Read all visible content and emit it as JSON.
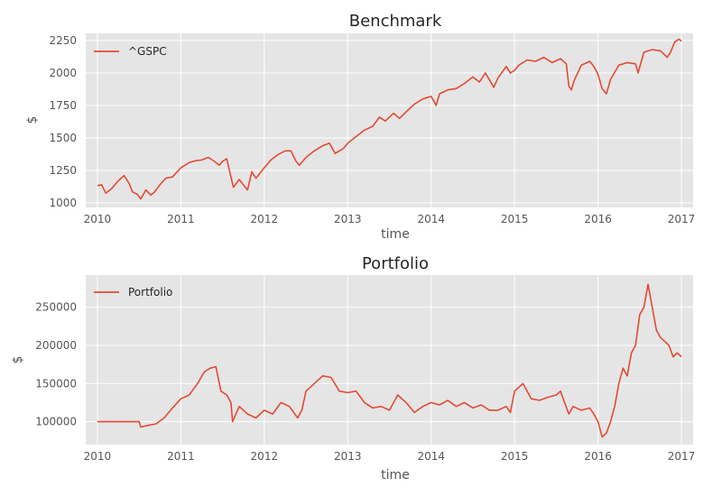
{
  "chart_data": [
    {
      "type": "line",
      "title": "Benchmark",
      "xlabel": "time",
      "ylabel": "$",
      "xlim": [
        2009.86,
        2017.14
      ],
      "ylim": [
        965,
        2305
      ],
      "x_ticks": [
        2010,
        2011,
        2012,
        2013,
        2014,
        2015,
        2016,
        2017
      ],
      "x_tick_labels": [
        "2010",
        "2011",
        "2012",
        "2013",
        "2014",
        "2015",
        "2016",
        "2017"
      ],
      "y_ticks": [
        1000,
        1250,
        1500,
        1750,
        2000,
        2250
      ],
      "y_tick_labels": [
        "1000",
        "1250",
        "1500",
        "1750",
        "2000",
        "2250"
      ],
      "grid": true,
      "legend": "top-left",
      "series": [
        {
          "name": "^GSPC",
          "color": "#e24a33",
          "points": [
            [
              2010.0,
              1132
            ],
            [
              2010.05,
              1140
            ],
            [
              2010.1,
              1075
            ],
            [
              2010.17,
              1110
            ],
            [
              2010.25,
              1170
            ],
            [
              2010.32,
              1210
            ],
            [
              2010.38,
              1150
            ],
            [
              2010.42,
              1085
            ],
            [
              2010.48,
              1065
            ],
            [
              2010.52,
              1030
            ],
            [
              2010.58,
              1100
            ],
            [
              2010.64,
              1060
            ],
            [
              2010.68,
              1080
            ],
            [
              2010.75,
              1140
            ],
            [
              2010.82,
              1190
            ],
            [
              2010.9,
              1200
            ],
            [
              2011.0,
              1270
            ],
            [
              2011.1,
              1310
            ],
            [
              2011.18,
              1325
            ],
            [
              2011.25,
              1330
            ],
            [
              2011.33,
              1350
            ],
            [
              2011.4,
              1320
            ],
            [
              2011.46,
              1290
            ],
            [
              2011.5,
              1320
            ],
            [
              2011.55,
              1340
            ],
            [
              2011.6,
              1200
            ],
            [
              2011.63,
              1120
            ],
            [
              2011.7,
              1180
            ],
            [
              2011.76,
              1130
            ],
            [
              2011.8,
              1100
            ],
            [
              2011.85,
              1240
            ],
            [
              2011.9,
              1190
            ],
            [
              2011.95,
              1230
            ],
            [
              2012.0,
              1270
            ],
            [
              2012.08,
              1330
            ],
            [
              2012.16,
              1370
            ],
            [
              2012.25,
              1400
            ],
            [
              2012.32,
              1400
            ],
            [
              2012.38,
              1320
            ],
            [
              2012.42,
              1290
            ],
            [
              2012.5,
              1350
            ],
            [
              2012.6,
              1400
            ],
            [
              2012.7,
              1440
            ],
            [
              2012.78,
              1460
            ],
            [
              2012.85,
              1380
            ],
            [
              2012.9,
              1400
            ],
            [
              2012.95,
              1420
            ],
            [
              2013.0,
              1460
            ],
            [
              2013.1,
              1510
            ],
            [
              2013.2,
              1560
            ],
            [
              2013.3,
              1590
            ],
            [
              2013.38,
              1660
            ],
            [
              2013.45,
              1630
            ],
            [
              2013.55,
              1690
            ],
            [
              2013.62,
              1650
            ],
            [
              2013.7,
              1700
            ],
            [
              2013.8,
              1760
            ],
            [
              2013.9,
              1800
            ],
            [
              2014.0,
              1820
            ],
            [
              2014.06,
              1750
            ],
            [
              2014.1,
              1840
            ],
            [
              2014.2,
              1870
            ],
            [
              2014.3,
              1880
            ],
            [
              2014.4,
              1920
            ],
            [
              2014.5,
              1970
            ],
            [
              2014.58,
              1930
            ],
            [
              2014.65,
              2000
            ],
            [
              2014.75,
              1890
            ],
            [
              2014.8,
              1960
            ],
            [
              2014.9,
              2050
            ],
            [
              2014.95,
              2000
            ],
            [
              2015.0,
              2020
            ],
            [
              2015.05,
              2060
            ],
            [
              2015.15,
              2100
            ],
            [
              2015.25,
              2090
            ],
            [
              2015.35,
              2120
            ],
            [
              2015.45,
              2080
            ],
            [
              2015.55,
              2110
            ],
            [
              2015.62,
              2070
            ],
            [
              2015.65,
              1900
            ],
            [
              2015.68,
              1870
            ],
            [
              2015.72,
              1950
            ],
            [
              2015.8,
              2060
            ],
            [
              2015.9,
              2090
            ],
            [
              2015.95,
              2050
            ],
            [
              2016.0,
              1990
            ],
            [
              2016.05,
              1880
            ],
            [
              2016.1,
              1840
            ],
            [
              2016.15,
              1950
            ],
            [
              2016.25,
              2060
            ],
            [
              2016.35,
              2080
            ],
            [
              2016.45,
              2070
            ],
            [
              2016.48,
              2000
            ],
            [
              2016.55,
              2160
            ],
            [
              2016.65,
              2180
            ],
            [
              2016.75,
              2170
            ],
            [
              2016.83,
              2120
            ],
            [
              2016.87,
              2160
            ],
            [
              2016.92,
              2240
            ],
            [
              2016.97,
              2260
            ],
            [
              2017.0,
              2245
            ]
          ]
        }
      ]
    },
    {
      "type": "line",
      "title": "Portfolio",
      "xlabel": "time",
      "ylabel": "$",
      "xlim": [
        2009.86,
        2017.14
      ],
      "ylim": [
        70000,
        292000
      ],
      "x_ticks": [
        2010,
        2011,
        2012,
        2013,
        2014,
        2015,
        2016,
        2017
      ],
      "x_tick_labels": [
        "2010",
        "2011",
        "2012",
        "2013",
        "2014",
        "2015",
        "2016",
        "2017"
      ],
      "y_ticks": [
        100000,
        150000,
        200000,
        250000
      ],
      "y_tick_labels": [
        "100000",
        "150000",
        "200000",
        "250000"
      ],
      "grid": true,
      "legend": "top-left",
      "series": [
        {
          "name": "Portfolio",
          "color": "#e24a33",
          "points": [
            [
              2010.0,
              100000
            ],
            [
              2010.5,
              100000
            ],
            [
              2010.52,
              93000
            ],
            [
              2010.6,
              95000
            ],
            [
              2010.7,
              97000
            ],
            [
              2010.8,
              105000
            ],
            [
              2010.9,
              118000
            ],
            [
              2011.0,
              130000
            ],
            [
              2011.1,
              135000
            ],
            [
              2011.2,
              150000
            ],
            [
              2011.28,
              165000
            ],
            [
              2011.35,
              170000
            ],
            [
              2011.42,
              172000
            ],
            [
              2011.48,
              140000
            ],
            [
              2011.55,
              135000
            ],
            [
              2011.6,
              125000
            ],
            [
              2011.62,
              100000
            ],
            [
              2011.7,
              120000
            ],
            [
              2011.8,
              110000
            ],
            [
              2011.9,
              105000
            ],
            [
              2012.0,
              115000
            ],
            [
              2012.1,
              110000
            ],
            [
              2012.2,
              125000
            ],
            [
              2012.3,
              120000
            ],
            [
              2012.4,
              105000
            ],
            [
              2012.45,
              115000
            ],
            [
              2012.5,
              140000
            ],
            [
              2012.6,
              150000
            ],
            [
              2012.7,
              160000
            ],
            [
              2012.8,
              158000
            ],
            [
              2012.9,
              140000
            ],
            [
              2013.0,
              138000
            ],
            [
              2013.1,
              140000
            ],
            [
              2013.2,
              125000
            ],
            [
              2013.3,
              118000
            ],
            [
              2013.4,
              120000
            ],
            [
              2013.5,
              115000
            ],
            [
              2013.6,
              135000
            ],
            [
              2013.7,
              125000
            ],
            [
              2013.8,
              112000
            ],
            [
              2013.9,
              120000
            ],
            [
              2014.0,
              125000
            ],
            [
              2014.1,
              122000
            ],
            [
              2014.2,
              128000
            ],
            [
              2014.3,
              120000
            ],
            [
              2014.4,
              125000
            ],
            [
              2014.5,
              118000
            ],
            [
              2014.6,
              122000
            ],
            [
              2014.7,
              115000
            ],
            [
              2014.8,
              115000
            ],
            [
              2014.9,
              120000
            ],
            [
              2014.95,
              112000
            ],
            [
              2015.0,
              140000
            ],
            [
              2015.1,
              150000
            ],
            [
              2015.2,
              130000
            ],
            [
              2015.3,
              128000
            ],
            [
              2015.4,
              132000
            ],
            [
              2015.5,
              135000
            ],
            [
              2015.55,
              140000
            ],
            [
              2015.6,
              125000
            ],
            [
              2015.65,
              110000
            ],
            [
              2015.7,
              120000
            ],
            [
              2015.8,
              115000
            ],
            [
              2015.9,
              118000
            ],
            [
              2015.95,
              110000
            ],
            [
              2016.0,
              100000
            ],
            [
              2016.05,
              80000
            ],
            [
              2016.1,
              85000
            ],
            [
              2016.15,
              100000
            ],
            [
              2016.2,
              120000
            ],
            [
              2016.25,
              150000
            ],
            [
              2016.3,
              170000
            ],
            [
              2016.35,
              160000
            ],
            [
              2016.4,
              190000
            ],
            [
              2016.45,
              200000
            ],
            [
              2016.5,
              240000
            ],
            [
              2016.55,
              250000
            ],
            [
              2016.6,
              280000
            ],
            [
              2016.65,
              250000
            ],
            [
              2016.7,
              220000
            ],
            [
              2016.75,
              210000
            ],
            [
              2016.8,
              205000
            ],
            [
              2016.85,
              200000
            ],
            [
              2016.9,
              185000
            ],
            [
              2016.95,
              190000
            ],
            [
              2017.0,
              185000
            ]
          ]
        }
      ]
    }
  ]
}
